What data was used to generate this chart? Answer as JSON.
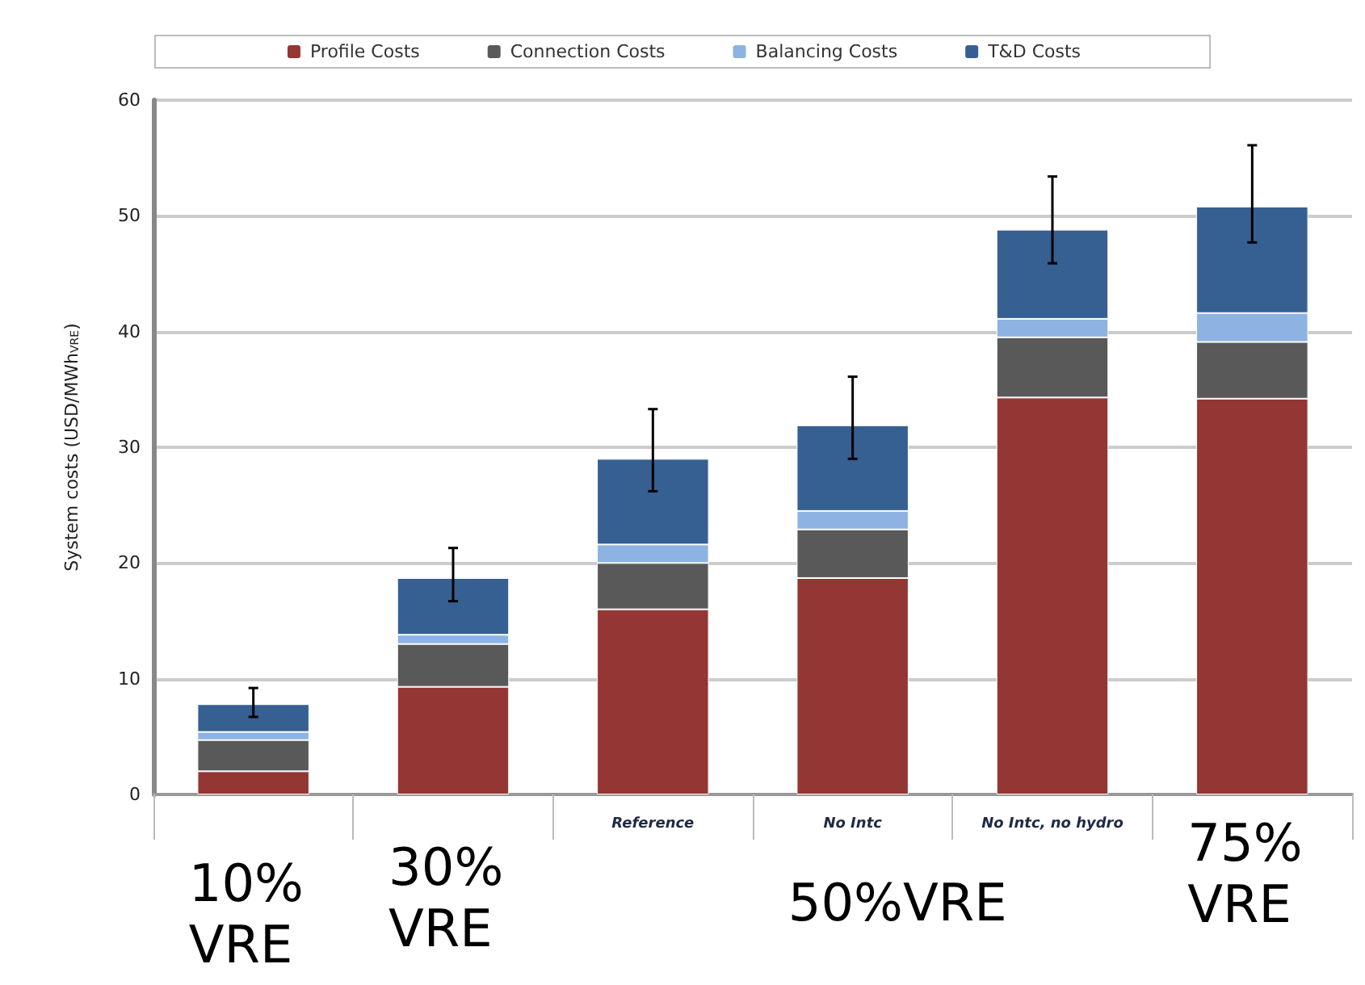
{
  "chart_data": {
    "type": "bar",
    "stacked": true,
    "ylabel": "System costs (USD/MWh$_{VRE}$)",
    "categories": [
      null,
      null,
      "Reference",
      "No Intc",
      "No Intc, no hydro",
      null
    ],
    "series": [
      {
        "name": "Profile Costs",
        "color": "#943634",
        "values": [
          2.0,
          9.3,
          16.0,
          18.7,
          34.3,
          34.2
        ]
      },
      {
        "name": "Connection Costs",
        "color": "#595959",
        "values": [
          2.7,
          3.7,
          4.0,
          4.2,
          5.2,
          4.9
        ]
      },
      {
        "name": "Balancing Costs",
        "color": "#8db3e2",
        "values": [
          0.7,
          0.8,
          1.6,
          1.6,
          1.6,
          2.5
        ]
      },
      {
        "name": "T&D Costs",
        "color": "#366092",
        "values": [
          2.4,
          4.9,
          7.4,
          7.4,
          7.7,
          9.2
        ],
        "errors": [
          [
            6.7,
            9.2
          ],
          [
            16.7,
            21.3
          ],
          [
            26.2,
            33.3
          ],
          [
            29.0,
            36.1
          ],
          [
            45.9,
            53.4
          ],
          [
            47.7,
            56.1
          ]
        ]
      }
    ],
    "ylim": [
      0,
      60
    ],
    "yticks": [
      0,
      10,
      20,
      30,
      40,
      50,
      60
    ],
    "grid": "y",
    "legend": "top",
    "annotations": [
      "10%\nVRE",
      "30%\nVRE",
      "50%VRE",
      "75%\nVRE"
    ]
  }
}
